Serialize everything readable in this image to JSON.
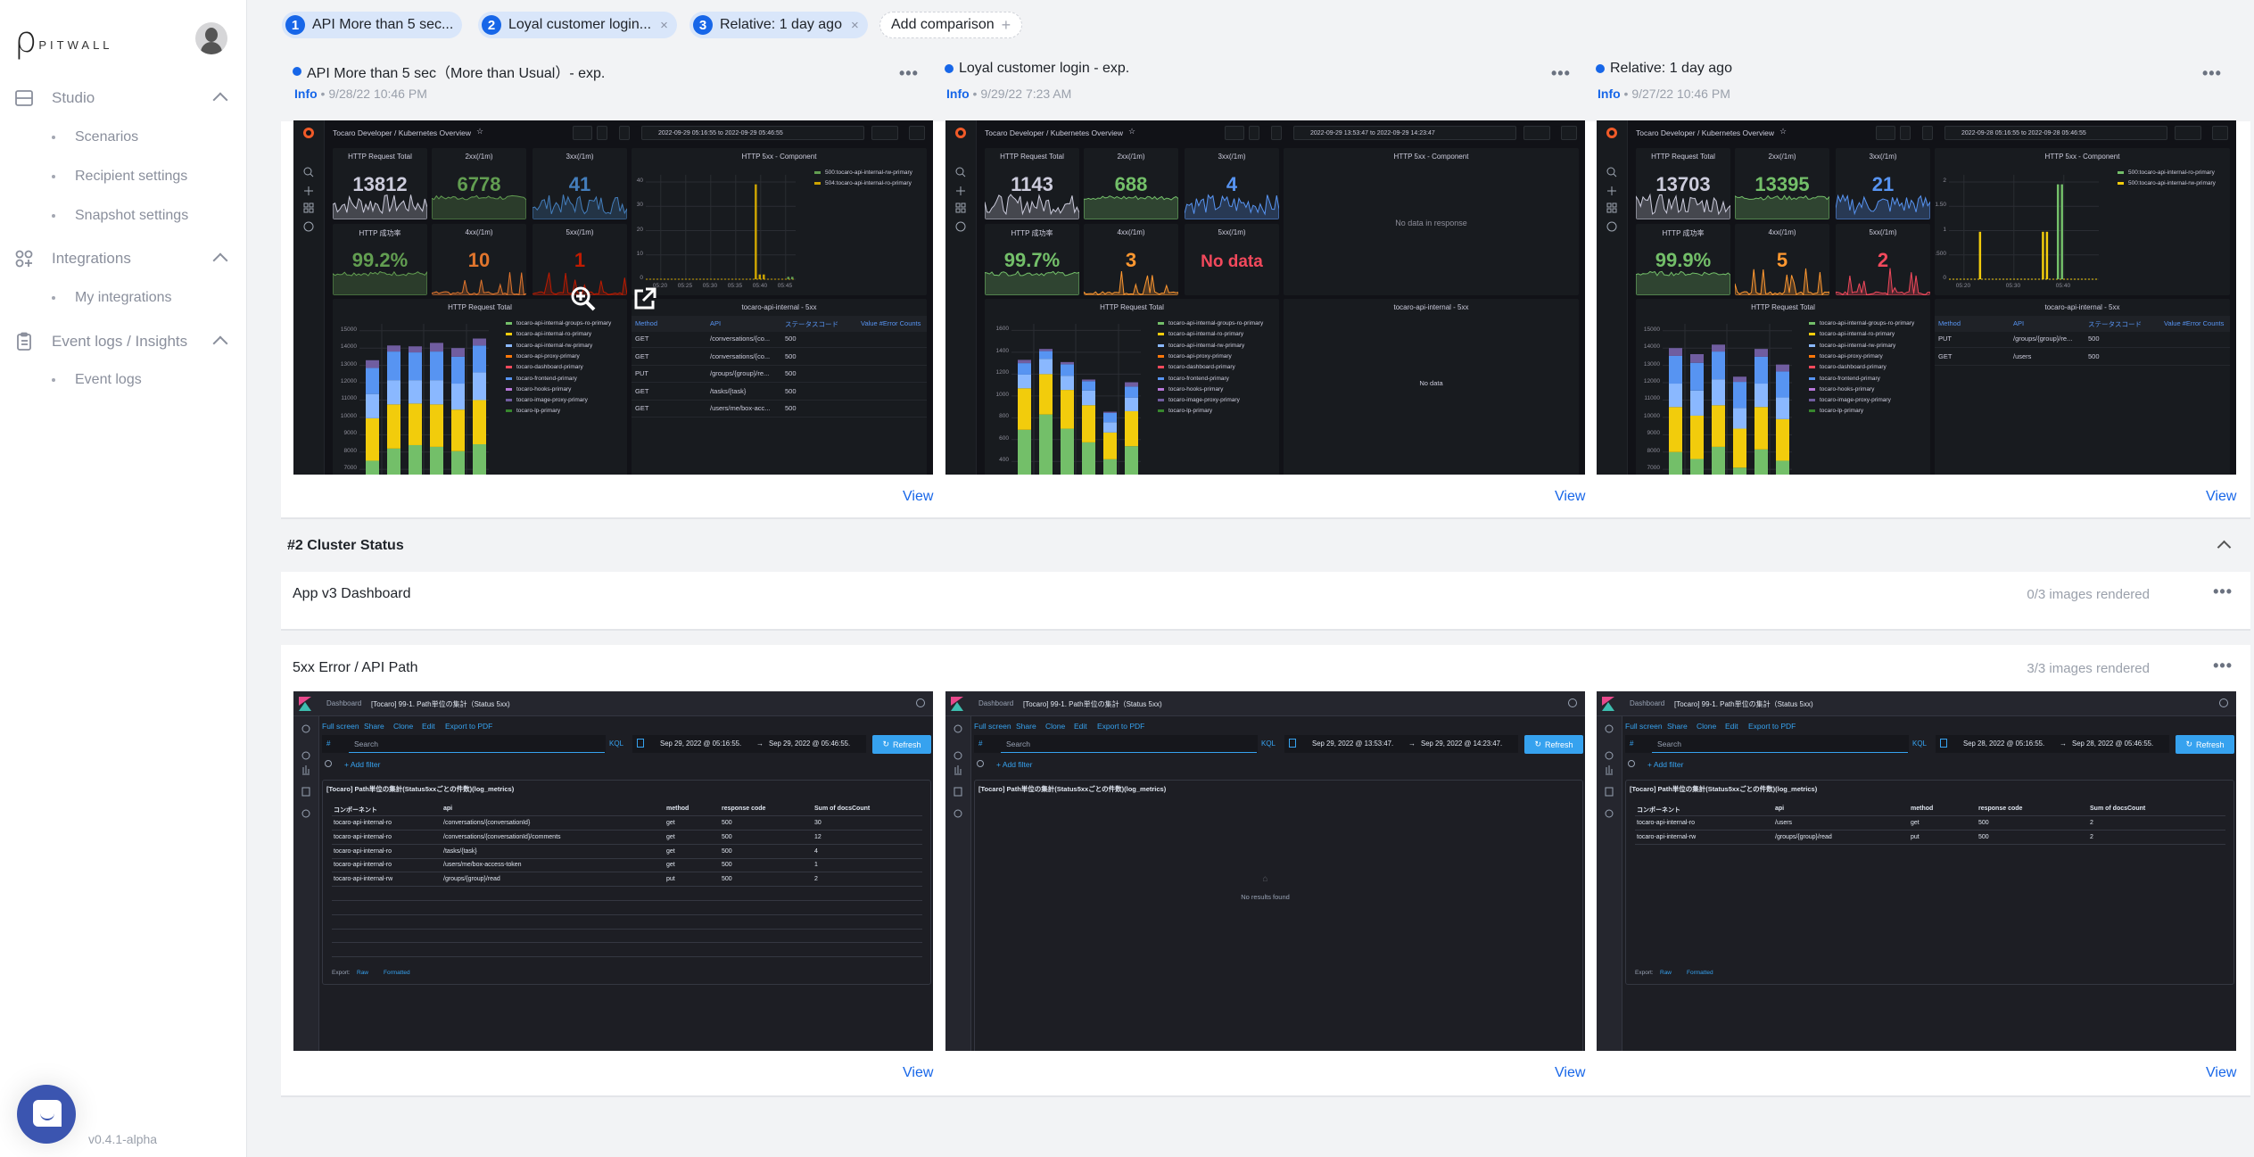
{
  "brand": {
    "logo_text": "PITWALL",
    "version": "v0.4.1-alpha"
  },
  "sidebar": {
    "groups": [
      {
        "label": "Studio",
        "icon": "server-icon",
        "items": [
          "Scenarios",
          "Recipient settings",
          "Snapshot settings"
        ]
      },
      {
        "label": "Integrations",
        "icon": "apps-add-icon",
        "items": [
          "My integrations"
        ]
      },
      {
        "label": "Event logs / Insights",
        "icon": "clipboard-list-icon",
        "items": [
          "Event logs"
        ]
      }
    ]
  },
  "comparison_tabs": [
    {
      "num": "1",
      "label": "API More than 5 sec...",
      "closable": false
    },
    {
      "num": "2",
      "label": "Loyal customer login...",
      "closable": true,
      "close": "×"
    },
    {
      "num": "3",
      "label": "Relative: 1 day ago",
      "closable": true,
      "close": "×"
    }
  ],
  "add_comparison": {
    "label": "Add comparison",
    "icon": "+"
  },
  "more_label": "•••",
  "colors": {
    "accent": "#1766e8",
    "stat_total": "#ccccdc",
    "green": "#73bf69",
    "blue": "#5794f2",
    "orange": "#ff9830",
    "red": "#f2495c",
    "yellow": "#f2cc0c"
  },
  "grafana_common": {
    "breadcrumb": "Tocaro Developer  / Kubernetes Overview",
    "component_title": "HTTP 5xx - Component",
    "bar_title": "HTTP Request Total",
    "table_title": "tocaro-api-internal - 5xx",
    "table_headers": [
      "Method",
      "API",
      "ステータスコード",
      "Value #Error Counts"
    ],
    "bar_legend": [
      {
        "label": "tocaro-api-internal-groups-ro-primary",
        "color": "#73bf69"
      },
      {
        "label": "tocaro-api-internal-ro-primary",
        "color": "#f2cc0c"
      },
      {
        "label": "tocaro-api-internal-rw-primary",
        "color": "#8ab8ff"
      },
      {
        "label": "tocaro-api-proxy-primary",
        "color": "#ff780a"
      },
      {
        "label": "tocaro-dashboard-primary",
        "color": "#f2495c"
      },
      {
        "label": "tocaro-frontend-primary",
        "color": "#5794f2"
      },
      {
        "label": "tocaro-hooks-primary",
        "color": "#b877d9"
      },
      {
        "label": "tocaro-image-proxy-primary",
        "color": "#705da0"
      },
      {
        "label": "tocaro-lp-primary",
        "color": "#37872d"
      }
    ],
    "stack_colors": [
      "#73bf69",
      "#f2cc0c",
      "#8ab8ff",
      "#5794f2",
      "#705da0"
    ]
  },
  "snapshots": [
    {
      "title": "API More than 5 sec（More than Usual）- exp.",
      "info": "Info",
      "timestamp": "• 9/28/22 10:46 PM",
      "view": "View",
      "time_range": "2022-09-29 05:16:55 to 2022-09-29 05:46:55",
      "stats": [
        {
          "title": "HTTP Request Total",
          "value": "13812",
          "color": "#ccccdc"
        },
        {
          "title": "2xx(/1m)",
          "value": "6778",
          "color": "#629e51"
        },
        {
          "title": "3xx(/1m)",
          "value": "41",
          "color": "#447ebc"
        },
        {
          "title": "HTTP 成功率",
          "value": "99.2%",
          "color": "#629e51"
        },
        {
          "title": "4xx(/1m)",
          "value": "10",
          "color": "#e0752d"
        },
        {
          "title": "5xx(/1m)",
          "value": "1",
          "color": "#bf1b00"
        }
      ],
      "component": {
        "yticks": [
          "0",
          "10",
          "20",
          "30",
          "40"
        ],
        "ymax": 44,
        "xticks": [
          "05:20",
          "05:25",
          "05:30",
          "05:35",
          "05:40",
          "05:45"
        ],
        "legend": [
          {
            "label": "500:tocaro-api-internal-rw-primary",
            "color": "#629e51"
          },
          {
            "label": "504:tocaro-api-internal-ro-primary",
            "color": "#cca300"
          }
        ],
        "bars": [
          {
            "t": 21.8,
            "v": 40,
            "s": 1
          },
          {
            "t": 22.6,
            "v": 2,
            "s": 1
          },
          {
            "t": 23.4,
            "v": 2,
            "s": 1
          },
          {
            "t": 28.3,
            "v": 1,
            "s": 0
          },
          {
            "t": 29.1,
            "v": 1,
            "s": 0
          }
        ],
        "message": ""
      },
      "bar_yticks": [
        7000,
        8000,
        9000,
        10000,
        11000,
        12000,
        13000,
        14000,
        15000
      ],
      "bar_yrange": [
        6700,
        15400
      ],
      "bars": [
        [
          7500,
          9950,
          11350,
          12850,
          13300
        ],
        [
          8200,
          10750,
          12150,
          13800,
          14150
        ],
        [
          8400,
          10800,
          12150,
          13750,
          14100
        ],
        [
          8300,
          10750,
          12150,
          13800,
          14300
        ],
        [
          8050,
          10450,
          11950,
          13500,
          14000
        ],
        [
          8450,
          11000,
          12600,
          14150,
          14550
        ]
      ],
      "table_rows": [
        [
          "GET",
          "/conversations/{co...",
          "500"
        ],
        [
          "GET",
          "/conversations/{co...",
          "500"
        ],
        [
          "PUT",
          "/groups/{group}/re...",
          "500"
        ],
        [
          "GET",
          "/tasks/{task}",
          "500"
        ],
        [
          "GET",
          "/users/me/box-acc...",
          "500"
        ]
      ],
      "table_message": "",
      "overlay": {
        "zoom": "zoom-in-icon",
        "open": "open-external-icon"
      }
    },
    {
      "title": "Loyal customer login - exp.",
      "info": "Info",
      "timestamp": "• 9/29/22 7:23 AM",
      "view": "View",
      "time_range": "2022-09-29 13:53:47 to 2022-09-29 14:23:47",
      "stats": [
        {
          "title": "HTTP Request Total",
          "value": "1143",
          "color": "#ccccdc"
        },
        {
          "title": "2xx(/1m)",
          "value": "688",
          "color": "#73bf69"
        },
        {
          "title": "3xx(/1m)",
          "value": "4",
          "color": "#5794f2"
        },
        {
          "title": "HTTP 成功率",
          "value": "99.7%",
          "color": "#73bf69"
        },
        {
          "title": "4xx(/1m)",
          "value": "3",
          "color": "#ff9830"
        },
        {
          "title": "5xx(/1m)",
          "value": "No data",
          "color": "#f2495c"
        }
      ],
      "component": {
        "message": "No data in response"
      },
      "bar_yticks": [
        400,
        600,
        800,
        1000,
        1200,
        1400,
        1600
      ],
      "bar_yrange": [
        280,
        1660
      ],
      "bars": [
        [
          690,
          1070,
          1195,
          1300,
          1330
        ],
        [
          830,
          1200,
          1340,
          1410,
          1430
        ],
        [
          700,
          1055,
          1185,
          1290,
          1310
        ],
        [
          575,
          915,
          1050,
          1135,
          1150
        ],
        [
          420,
          665,
          760,
          845,
          855
        ],
        [
          540,
          860,
          985,
          1085,
          1125
        ]
      ],
      "table_rows": [],
      "table_message": "No data"
    },
    {
      "title": "Relative: 1 day ago",
      "info": "Info",
      "timestamp": "• 9/27/22 10:46 PM",
      "view": "View",
      "time_range": "2022-09-28 05:16:55 to 2022-09-28 05:46:55",
      "stats": [
        {
          "title": "HTTP Request Total",
          "value": "13703",
          "color": "#ccccdc"
        },
        {
          "title": "2xx(/1m)",
          "value": "13395",
          "color": "#73bf69"
        },
        {
          "title": "3xx(/1m)",
          "value": "21",
          "color": "#5794f2"
        },
        {
          "title": "HTTP 成功率",
          "value": "99.9%",
          "color": "#73bf69"
        },
        {
          "title": "4xx(/1m)",
          "value": "5",
          "color": "#ff9830"
        },
        {
          "title": "5xx(/1m)",
          "value": "2",
          "color": "#f2495c"
        }
      ],
      "component": {
        "yticks": [
          "0",
          "0.500",
          "1",
          "1.50",
          "2"
        ],
        "ymax": 2.2,
        "xticks": [
          "05:20",
          "",
          "05:30",
          "",
          "05:40",
          ""
        ],
        "legend": [
          {
            "label": "500:tocaro-api-internal-ro-primary",
            "color": "#73bf69"
          },
          {
            "label": "500:tocaro-api-internal-rw-primary",
            "color": "#f2cc0c"
          }
        ],
        "bars": [
          {
            "t": 6,
            "v": 1,
            "s": 1
          },
          {
            "t": 18.6,
            "v": 1,
            "s": 1
          },
          {
            "t": 19.4,
            "v": 1,
            "s": 1
          },
          {
            "t": 21.6,
            "v": 2,
            "s": 0
          },
          {
            "t": 22.4,
            "v": 2,
            "s": 0
          }
        ],
        "message": ""
      },
      "bar_yticks": [
        7000,
        8000,
        9000,
        10000,
        11000,
        12000,
        13000,
        14000,
        15000
      ],
      "bar_yrange": [
        6700,
        15400
      ],
      "bars": [
        [
          8000,
          10600,
          11950,
          13550,
          14000
        ],
        [
          7600,
          10100,
          11550,
          13150,
          13650
        ],
        [
          8300,
          10700,
          12200,
          13800,
          14200
        ],
        [
          7100,
          9350,
          10550,
          12050,
          12350
        ],
        [
          8150,
          10600,
          11950,
          13500,
          13950
        ],
        [
          7500,
          9900,
          11150,
          12650,
          13050
        ]
      ],
      "table_rows": [
        [
          "PUT",
          "/groups/{group}/re...",
          "500"
        ],
        [
          "GET",
          "/users",
          "500"
        ]
      ],
      "table_message": ""
    }
  ],
  "cluster": {
    "title": "#2 Cluster Status"
  },
  "dashboards": [
    {
      "title": "App v3 Dashboard",
      "rendered": "0/3 images rendered"
    },
    {
      "title": "5xx Error / API Path",
      "rendered": "3/3 images rendered"
    }
  ],
  "kibana_common": {
    "breadcrumb": "Dashboard",
    "page_title": "[Tocaro] 99-1. Path単位の集計（Status 5xx)",
    "links": [
      "Full screen",
      "Share",
      "Clone",
      "Edit",
      "Export to PDF"
    ],
    "search_placeholder": "Search",
    "query_lang": "KQL",
    "refresh": "Refresh",
    "add_filter": "+ Add filter",
    "arrow": "→",
    "hash": "#",
    "table_title": "[Tocaro] Path単位の集計(Status5xxごとの件数)(log_metrics)",
    "headers": [
      "コンポーネント",
      "api",
      "method",
      "response code",
      "Sum of docsCount"
    ],
    "export_label": "Export:",
    "export_raw": "Raw",
    "export_formatted": "Formatted"
  },
  "kibana": [
    {
      "start": "Sep 29, 2022 @ 05:16:55.",
      "end": "Sep 29, 2022 @ 05:46:55.",
      "view": "View",
      "rows": [
        [
          "tocaro-api-internal-ro",
          "/conversations/{conversationId}",
          "get",
          "500",
          "30"
        ],
        [
          "tocaro-api-internal-ro",
          "/conversations/{conversationId}/comments",
          "get",
          "500",
          "12"
        ],
        [
          "tocaro-api-internal-ro",
          "/tasks/{task}",
          "get",
          "500",
          "4"
        ],
        [
          "tocaro-api-internal-ro",
          "/users/me/box-access-token",
          "get",
          "500",
          "1"
        ],
        [
          "tocaro-api-internal-rw",
          "/groups/{group}/read",
          "put",
          "500",
          "2"
        ]
      ],
      "message": ""
    },
    {
      "start": "Sep 29, 2022 @ 13:53:47.",
      "end": "Sep 29, 2022 @ 14:23:47.",
      "view": "View",
      "rows": [],
      "message": "No results found"
    },
    {
      "start": "Sep 28, 2022 @ 05:16:55.",
      "end": "Sep 28, 2022 @ 05:46:55.",
      "view": "View",
      "rows": [
        [
          "tocaro-api-internal-ro",
          "/users",
          "get",
          "500",
          "2"
        ],
        [
          "tocaro-api-internal-rw",
          "/groups/{group}/read",
          "put",
          "500",
          "2"
        ]
      ],
      "message": ""
    }
  ]
}
